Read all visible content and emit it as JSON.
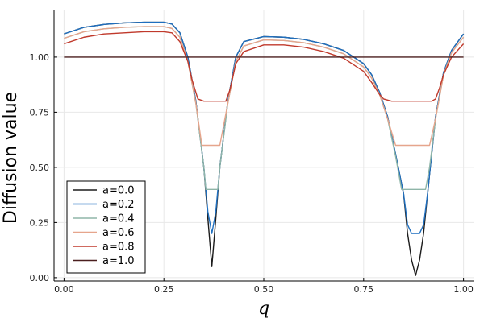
{
  "chart_data": {
    "type": "line",
    "xlabel": "q",
    "ylabel": "Diffusion value",
    "xlim": [
      0.0,
      1.0
    ],
    "ylim": [
      0.0,
      1.2
    ],
    "xticks": [
      "0.00",
      "0.25",
      "0.50",
      "0.75",
      "1.00"
    ],
    "yticks": [
      "0.00",
      "0.25",
      "0.50",
      "0.75",
      "1.00"
    ],
    "grid": true,
    "legend_position": "bottom-left",
    "series": [
      {
        "name": "a=0.0",
        "color": "#1c1c1c",
        "x": [
          0,
          0.05,
          0.1,
          0.15,
          0.2,
          0.25,
          0.27,
          0.29,
          0.31,
          0.33,
          0.35,
          0.36,
          0.37,
          0.38,
          0.39,
          0.41,
          0.43,
          0.45,
          0.5,
          0.55,
          0.6,
          0.65,
          0.7,
          0.75,
          0.77,
          0.79,
          0.81,
          0.83,
          0.85,
          0.86,
          0.87,
          0.88,
          0.89,
          0.9,
          0.91,
          0.93,
          0.95,
          0.97,
          1.0
        ],
        "y": [
          1.105,
          1.135,
          1.148,
          1.155,
          1.158,
          1.158,
          1.15,
          1.11,
          1.0,
          0.8,
          0.5,
          0.27,
          0.05,
          0.27,
          0.5,
          0.8,
          1.0,
          1.07,
          1.093,
          1.09,
          1.08,
          1.06,
          1.03,
          0.97,
          0.92,
          0.84,
          0.73,
          0.56,
          0.38,
          0.2,
          0.08,
          0.01,
          0.08,
          0.2,
          0.38,
          0.73,
          0.93,
          1.03,
          1.105
        ]
      },
      {
        "name": "a=0.2",
        "color": "#1f6fbf",
        "x": [
          0,
          0.05,
          0.1,
          0.15,
          0.2,
          0.25,
          0.27,
          0.29,
          0.31,
          0.33,
          0.35,
          0.36,
          0.37,
          0.38,
          0.39,
          0.41,
          0.43,
          0.45,
          0.5,
          0.55,
          0.6,
          0.65,
          0.7,
          0.75,
          0.77,
          0.79,
          0.81,
          0.83,
          0.85,
          0.86,
          0.87,
          0.88,
          0.89,
          0.9,
          0.91,
          0.93,
          0.95,
          0.97,
          1.0
        ],
        "y": [
          1.105,
          1.135,
          1.148,
          1.155,
          1.158,
          1.158,
          1.15,
          1.11,
          1.0,
          0.8,
          0.5,
          0.3,
          0.2,
          0.3,
          0.5,
          0.8,
          1.0,
          1.07,
          1.093,
          1.09,
          1.08,
          1.06,
          1.03,
          0.97,
          0.92,
          0.84,
          0.73,
          0.56,
          0.38,
          0.24,
          0.2,
          0.2,
          0.2,
          0.24,
          0.38,
          0.73,
          0.93,
          1.03,
          1.105
        ]
      },
      {
        "name": "a=0.4",
        "color": "#8fb5a8",
        "x": [
          0,
          0.05,
          0.1,
          0.15,
          0.2,
          0.25,
          0.27,
          0.29,
          0.31,
          0.33,
          0.35,
          0.355,
          0.365,
          0.375,
          0.385,
          0.39,
          0.41,
          0.43,
          0.45,
          0.5,
          0.55,
          0.6,
          0.65,
          0.7,
          0.75,
          0.77,
          0.79,
          0.81,
          0.83,
          0.845,
          0.86,
          0.875,
          0.89,
          0.905,
          0.915,
          0.93,
          0.95,
          0.97,
          1.0
        ],
        "y": [
          1.085,
          1.115,
          1.128,
          1.135,
          1.138,
          1.138,
          1.13,
          1.09,
          0.98,
          0.79,
          0.5,
          0.4,
          0.4,
          0.4,
          0.4,
          0.5,
          0.79,
          0.98,
          1.05,
          1.078,
          1.075,
          1.065,
          1.045,
          1.015,
          0.955,
          0.905,
          0.83,
          0.72,
          0.55,
          0.4,
          0.4,
          0.4,
          0.4,
          0.4,
          0.5,
          0.72,
          0.92,
          1.02,
          1.09
        ]
      },
      {
        "name": "a=0.6",
        "color": "#e6a58c",
        "x": [
          0,
          0.05,
          0.1,
          0.15,
          0.2,
          0.25,
          0.27,
          0.29,
          0.31,
          0.33,
          0.345,
          0.36,
          0.38,
          0.39,
          0.41,
          0.43,
          0.45,
          0.5,
          0.55,
          0.6,
          0.65,
          0.7,
          0.75,
          0.77,
          0.79,
          0.81,
          0.83,
          0.845,
          0.86,
          0.88,
          0.9,
          0.915,
          0.93,
          0.95,
          0.97,
          1.0
        ],
        "y": [
          1.085,
          1.115,
          1.128,
          1.135,
          1.138,
          1.138,
          1.13,
          1.09,
          0.98,
          0.79,
          0.6,
          0.6,
          0.6,
          0.6,
          0.79,
          0.98,
          1.05,
          1.078,
          1.075,
          1.065,
          1.045,
          1.015,
          0.955,
          0.905,
          0.83,
          0.72,
          0.6,
          0.6,
          0.6,
          0.6,
          0.6,
          0.6,
          0.72,
          0.92,
          1.02,
          1.09
        ]
      },
      {
        "name": "a=0.8",
        "color": "#c0392b",
        "x": [
          0,
          0.05,
          0.1,
          0.15,
          0.2,
          0.25,
          0.27,
          0.29,
          0.31,
          0.32,
          0.335,
          0.35,
          0.37,
          0.39,
          0.405,
          0.415,
          0.43,
          0.45,
          0.5,
          0.55,
          0.6,
          0.65,
          0.7,
          0.75,
          0.77,
          0.79,
          0.8,
          0.82,
          0.84,
          0.86,
          0.88,
          0.9,
          0.92,
          0.93,
          0.94,
          0.95,
          0.97,
          1.0
        ],
        "y": [
          1.06,
          1.09,
          1.105,
          1.11,
          1.115,
          1.115,
          1.11,
          1.07,
          0.98,
          0.9,
          0.81,
          0.8,
          0.8,
          0.8,
          0.8,
          0.85,
          0.97,
          1.025,
          1.055,
          1.055,
          1.045,
          1.025,
          0.995,
          0.935,
          0.885,
          0.83,
          0.81,
          0.8,
          0.8,
          0.8,
          0.8,
          0.8,
          0.8,
          0.81,
          0.86,
          0.92,
          1.0,
          1.06
        ]
      },
      {
        "name": "a=1.0",
        "color": "#4a1e1e",
        "x": [
          0,
          1.0
        ],
        "y": [
          1.0,
          1.0
        ]
      }
    ]
  }
}
